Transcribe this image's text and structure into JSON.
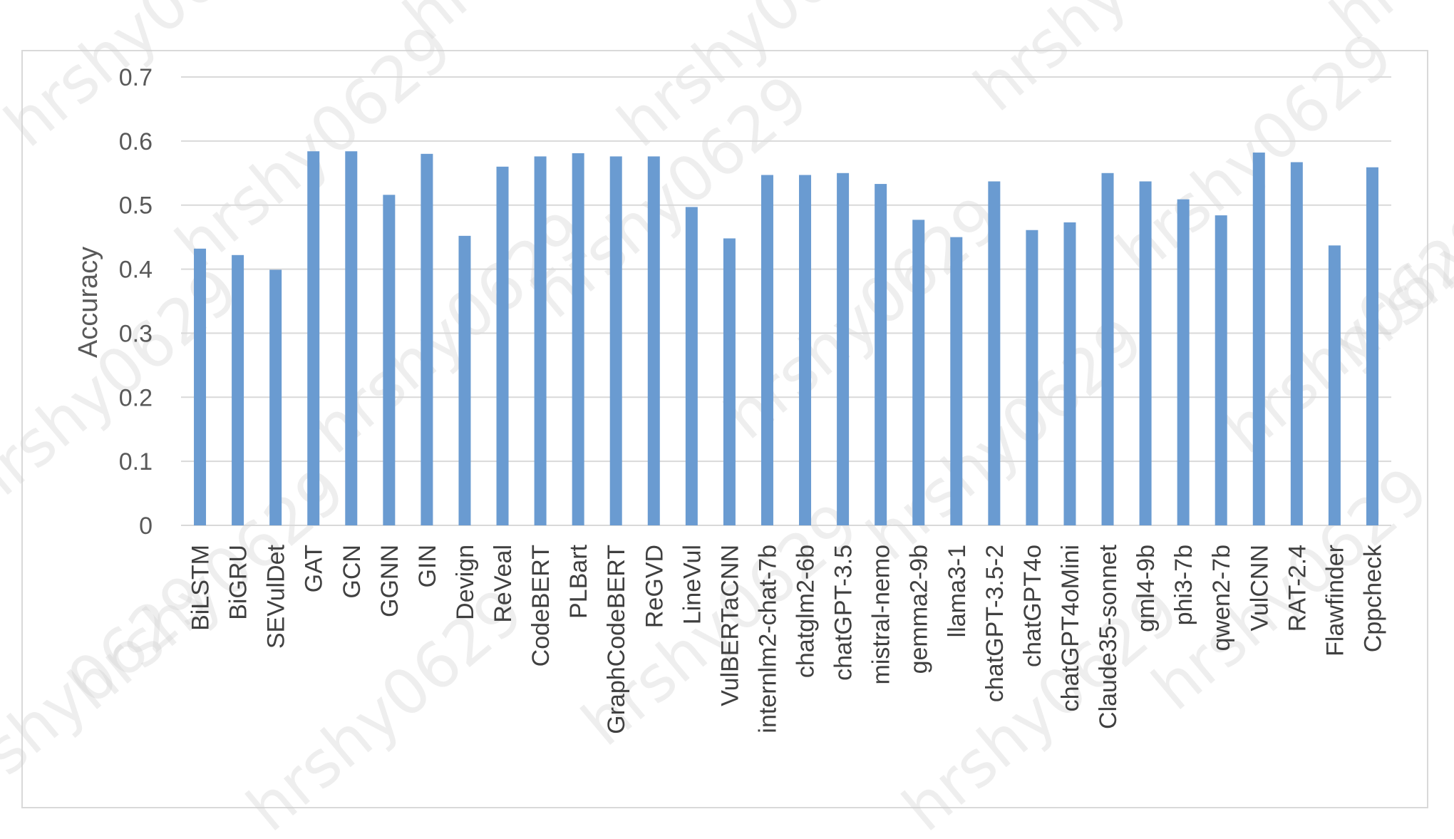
{
  "chart_data": {
    "type": "bar",
    "categories": [
      "BiLSTM",
      "BiGRU",
      "SEVulDet",
      "GAT",
      "GCN",
      "GGNN",
      "GIN",
      "Devign",
      "ReVeal",
      "CodeBERT",
      "PLBart",
      "GraphCodeBERT",
      "ReGVD",
      "LineVul",
      "VulBERTaCNN",
      "internlm2-chat-7b",
      "chatglm2-6b",
      "chatGPT-3.5",
      "mistral-nemo",
      "gemma2-9b",
      "llama3-1",
      "chatGPT-3.5-2",
      "chatGPT4o",
      "chatGPT4oMini",
      "Claude35-sonnet",
      "gml4-9b",
      "phi3-7b",
      "qwen2-7b",
      "VulCNN",
      "RAT-2.4",
      "Flawfinder",
      "Cppcheck"
    ],
    "values": [
      0.432,
      0.422,
      0.399,
      0.584,
      0.584,
      0.516,
      0.58,
      0.452,
      0.56,
      0.576,
      0.581,
      0.576,
      0.576,
      0.497,
      0.448,
      0.547,
      0.547,
      0.55,
      0.533,
      0.477,
      0.45,
      0.537,
      0.461,
      0.473,
      0.55,
      0.537,
      0.509,
      0.484,
      0.582,
      0.567,
      0.437,
      0.559
    ],
    "ylabel": "Accuracy",
    "xlabel": "",
    "ylim": [
      0,
      0.7
    ],
    "yticks": [
      "0",
      "0.1",
      "0.2",
      "0.3",
      "0.4",
      "0.5",
      "0.6",
      "0.7"
    ],
    "grid": true,
    "bar_color": "#6a9bd1",
    "grid_color": "#d9d9d9"
  },
  "watermark": "hrshy0629"
}
